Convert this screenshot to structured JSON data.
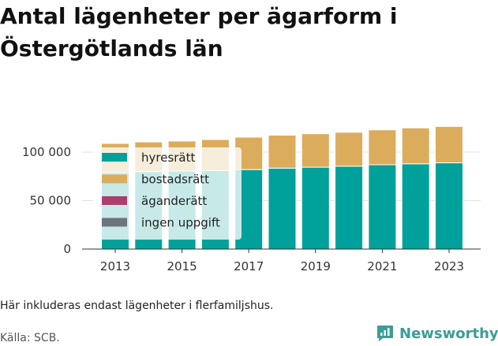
{
  "title": "Antal lägenheter per ägarform i Östergötlands län",
  "note": "Här inkluderas endast lägenheter i flerfamiljshus.",
  "source": "Källa: SCB.",
  "brand": {
    "name": "Newsworthy",
    "icon": "newsworthy-logo-icon",
    "color": "#3a9d96"
  },
  "chart_data": {
    "type": "bar",
    "stacked": true,
    "categories": [
      "2013",
      "2014",
      "2015",
      "2016",
      "2017",
      "2018",
      "2019",
      "2020",
      "2021",
      "2022",
      "2023"
    ],
    "x_tick_labels": [
      "2013",
      "2015",
      "2017",
      "2019",
      "2021",
      "2023"
    ],
    "y_tick_labels": [
      "0",
      "50 000",
      "100 000"
    ],
    "y_ticks": [
      0,
      50000,
      100000
    ],
    "ylim": [
      0,
      135000
    ],
    "grid": true,
    "legend_position": "top-left",
    "series": [
      {
        "name": "hyresrätt",
        "color": "#00a19a",
        "values": [
          79000,
          80000,
          80500,
          81000,
          82000,
          83500,
          84500,
          85500,
          87000,
          88000,
          89000
        ]
      },
      {
        "name": "bostadsrätt",
        "color": "#dcac5d",
        "values": [
          30000,
          30500,
          31000,
          32000,
          33500,
          34000,
          34500,
          35000,
          36000,
          37000,
          37500
        ]
      },
      {
        "name": "äganderätt",
        "color": "#ad3e6c",
        "values": [
          0,
          0,
          0,
          0,
          0,
          0,
          0,
          0,
          0,
          0,
          0
        ]
      },
      {
        "name": "ingen uppgift",
        "color": "#6c757d",
        "values": [
          0,
          0,
          0,
          0,
          0,
          0,
          0,
          0,
          0,
          0,
          0
        ]
      }
    ]
  }
}
